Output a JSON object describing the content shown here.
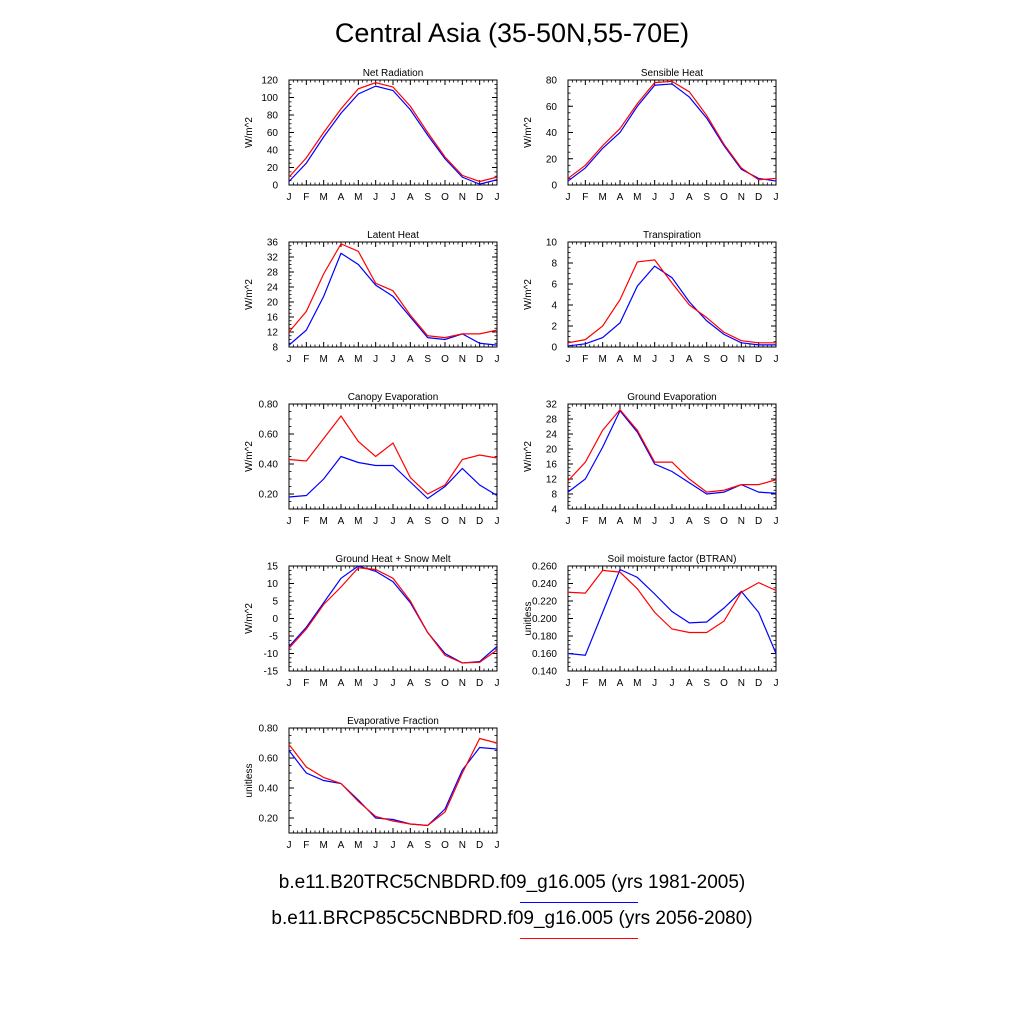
{
  "figure": {
    "title": "Central Asia (35-50N,55-70E)",
    "months": [
      "J",
      "F",
      "M",
      "A",
      "M",
      "J",
      "J",
      "A",
      "S",
      "O",
      "N",
      "D",
      "J"
    ]
  },
  "colors": {
    "run1": "#0000ff",
    "run2": "#ff0000"
  },
  "legend": [
    {
      "label": "b.e11.B20TRC5CNBDRD.f09_g16.005 (yrs 1981-2005)",
      "color": "#0000ff"
    },
    {
      "label": "b.e11.BRCP85C5CNBDRD.f09_g16.005 (yrs 2056-2080)",
      "color": "#ff0000"
    }
  ],
  "chart_data": [
    {
      "type": "line",
      "title": "Net Radiation",
      "ylabel": "W/m^2",
      "ylim": [
        0,
        120
      ],
      "yticks": [
        "0",
        "20",
        "40",
        "60",
        "80",
        "100",
        "120"
      ],
      "x": [
        "J",
        "F",
        "M",
        "A",
        "M",
        "J",
        "J",
        "A",
        "S",
        "O",
        "N",
        "D",
        "J"
      ],
      "series": [
        {
          "values": [
            4,
            25,
            55,
            82,
            104,
            113,
            108,
            86,
            57,
            30,
            9,
            1,
            6
          ]
        },
        {
          "values": [
            9,
            31,
            60,
            87,
            110,
            117,
            112,
            90,
            60,
            32,
            11,
            4,
            9
          ]
        }
      ]
    },
    {
      "type": "line",
      "title": "Sensible Heat",
      "ylabel": "W/m^2",
      "ylim": [
        0,
        80
      ],
      "yticks": [
        "0",
        "20",
        "40",
        "60",
        "80"
      ],
      "x": [
        "J",
        "F",
        "M",
        "A",
        "M",
        "J",
        "J",
        "A",
        "S",
        "O",
        "N",
        "D",
        "J"
      ],
      "series": [
        {
          "values": [
            3,
            13,
            28,
            40,
            60,
            76,
            77,
            67,
            51,
            30,
            12,
            5,
            3
          ]
        },
        {
          "values": [
            5,
            15,
            30,
            43,
            62,
            78,
            79,
            71,
            53,
            31,
            13,
            4,
            5
          ]
        }
      ]
    },
    {
      "type": "line",
      "title": "Latent Heat",
      "ylabel": "W/m^2",
      "ylim": [
        8,
        36
      ],
      "yticks": [
        "8",
        "12",
        "16",
        "20",
        "24",
        "28",
        "32",
        "36"
      ],
      "x": [
        "J",
        "F",
        "M",
        "A",
        "M",
        "J",
        "J",
        "A",
        "S",
        "O",
        "N",
        "D",
        "J"
      ],
      "series": [
        {
          "values": [
            8.5,
            12.5,
            21.5,
            33,
            30,
            24.5,
            21.5,
            16,
            10.5,
            10,
            11.5,
            9,
            8.5
          ]
        },
        {
          "values": [
            12,
            17.5,
            27.5,
            35.5,
            33.5,
            25,
            23,
            16.5,
            11,
            10.5,
            11.5,
            11.5,
            12.5
          ]
        }
      ]
    },
    {
      "type": "line",
      "title": "Transpiration",
      "ylabel": "W/m^2",
      "ylim": [
        0,
        10
      ],
      "yticks": [
        "0",
        "2",
        "4",
        "6",
        "8",
        "10"
      ],
      "x": [
        "J",
        "F",
        "M",
        "A",
        "M",
        "J",
        "J",
        "A",
        "S",
        "O",
        "N",
        "D",
        "J"
      ],
      "series": [
        {
          "values": [
            0.1,
            0.3,
            0.9,
            2.3,
            5.8,
            7.7,
            6.6,
            4.3,
            2.5,
            1.2,
            0.4,
            0.2,
            0.2
          ]
        },
        {
          "values": [
            0.4,
            0.7,
            2,
            4.5,
            8.1,
            8.3,
            6.1,
            4,
            2.8,
            1.4,
            0.6,
            0.4,
            0.4
          ]
        }
      ]
    },
    {
      "type": "line",
      "title": "Canopy Evaporation",
      "ylabel": "W/m^2",
      "ylim": [
        0.1,
        0.8
      ],
      "yticks": [
        "0.20",
        "0.40",
        "0.60",
        "0.80"
      ],
      "x": [
        "J",
        "F",
        "M",
        "A",
        "M",
        "J",
        "J",
        "A",
        "S",
        "O",
        "N",
        "D",
        "J"
      ],
      "series": [
        {
          "values": [
            0.18,
            0.19,
            0.3,
            0.45,
            0.41,
            0.39,
            0.39,
            0.28,
            0.17,
            0.25,
            0.37,
            0.26,
            0.19
          ]
        },
        {
          "values": [
            0.43,
            0.42,
            0.57,
            0.72,
            0.55,
            0.45,
            0.54,
            0.31,
            0.2,
            0.26,
            0.43,
            0.46,
            0.44
          ]
        }
      ]
    },
    {
      "type": "line",
      "title": "Ground Evaporation",
      "ylabel": "W/m^2",
      "ylim": [
        4,
        32
      ],
      "yticks": [
        "4",
        "8",
        "12",
        "16",
        "20",
        "24",
        "28",
        "32"
      ],
      "x": [
        "J",
        "F",
        "M",
        "A",
        "M",
        "J",
        "J",
        "A",
        "S",
        "O",
        "N",
        "D",
        "J"
      ],
      "series": [
        {
          "values": [
            8.5,
            12,
            20.5,
            30.2,
            24.5,
            16,
            14,
            11,
            8,
            8.5,
            10.5,
            8.5,
            8.2
          ]
        },
        {
          "values": [
            11.5,
            16.5,
            25,
            30.5,
            25,
            16.5,
            16.5,
            12,
            8.5,
            9,
            10.5,
            10.5,
            11.8
          ]
        }
      ]
    },
    {
      "type": "line",
      "title": "Ground Heat + Snow Melt",
      "ylabel": "W/m^2",
      "ylim": [
        -15,
        15
      ],
      "yticks": [
        "-15",
        "-10",
        "-5",
        "0",
        "5",
        "10",
        "15"
      ],
      "x": [
        "J",
        "F",
        "M",
        "A",
        "M",
        "J",
        "J",
        "A",
        "S",
        "O",
        "N",
        "D",
        "J"
      ],
      "series": [
        {
          "values": [
            -8,
            -2.5,
            4.5,
            11.5,
            15,
            13.5,
            10.5,
            4.5,
            -4,
            -10,
            -12.7,
            -12.3,
            -8
          ]
        },
        {
          "values": [
            -8.5,
            -3,
            4,
            9,
            14.5,
            14,
            11.5,
            5,
            -4,
            -10.5,
            -12.7,
            -12.5,
            -9
          ]
        }
      ]
    },
    {
      "type": "line",
      "title": "Soil moisture factor (BTRAN)",
      "ylabel": "unitless",
      "ylim": [
        0.14,
        0.26
      ],
      "yticks": [
        "0.140",
        "0.160",
        "0.180",
        "0.200",
        "0.220",
        "0.240",
        "0.260"
      ],
      "x": [
        "J",
        "F",
        "M",
        "A",
        "M",
        "J",
        "J",
        "A",
        "S",
        "O",
        "N",
        "D",
        "J"
      ],
      "series": [
        {
          "values": [
            0.16,
            0.158,
            0.207,
            0.256,
            0.247,
            0.228,
            0.208,
            0.195,
            0.196,
            0.212,
            0.231,
            0.207,
            0.16
          ]
        },
        {
          "values": [
            0.23,
            0.229,
            0.255,
            0.253,
            0.234,
            0.207,
            0.188,
            0.184,
            0.184,
            0.197,
            0.23,
            0.241,
            0.232
          ]
        }
      ]
    },
    {
      "type": "line",
      "title": "Evaporative Fraction",
      "ylabel": "unitless",
      "ylim": [
        0.1,
        0.8
      ],
      "yticks": [
        "0.20",
        "0.40",
        "0.60",
        "0.80"
      ],
      "x": [
        "J",
        "F",
        "M",
        "A",
        "M",
        "J",
        "J",
        "A",
        "S",
        "O",
        "N",
        "D",
        "J"
      ],
      "series": [
        {
          "values": [
            0.65,
            0.5,
            0.45,
            0.43,
            0.32,
            0.2,
            0.19,
            0.16,
            0.15,
            0.26,
            0.52,
            0.67,
            0.66
          ]
        },
        {
          "values": [
            0.69,
            0.54,
            0.47,
            0.43,
            0.31,
            0.21,
            0.18,
            0.16,
            0.15,
            0.24,
            0.5,
            0.73,
            0.7
          ]
        }
      ]
    }
  ]
}
